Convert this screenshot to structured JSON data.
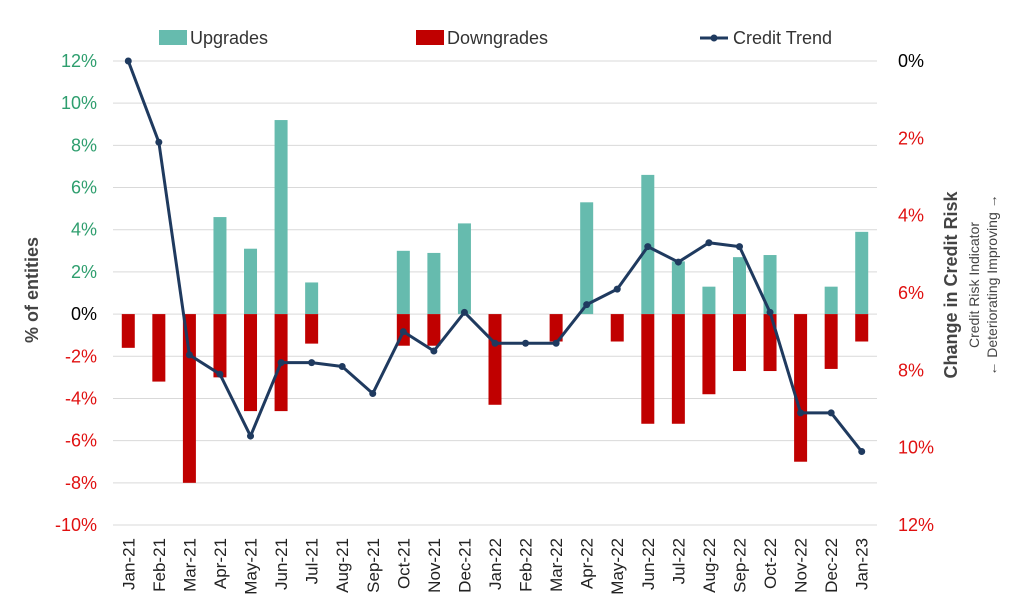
{
  "chart_data": {
    "type": "bar",
    "categories": [
      "Jan-21",
      "Feb-21",
      "Mar-21",
      "Apr-21",
      "May-21",
      "Jun-21",
      "Jul-21",
      "Aug-21",
      "Sep-21",
      "Oct-21",
      "Nov-21",
      "Dec-21",
      "Jan-22",
      "Feb-22",
      "Mar-22",
      "Apr-22",
      "May-22",
      "Jun-22",
      "Jul-22",
      "Aug-22",
      "Sep-22",
      "Oct-22",
      "Nov-22",
      "Dec-22",
      "Jan-23"
    ],
    "series": [
      {
        "name": "Upgrades",
        "type": "bar",
        "axis": "left",
        "color": "#66bbae",
        "values": [
          0,
          0,
          0,
          4.6,
          3.1,
          9.2,
          1.5,
          0,
          0,
          3.0,
          2.9,
          4.3,
          0,
          0,
          0,
          5.3,
          0,
          6.6,
          2.5,
          1.3,
          2.7,
          2.8,
          0,
          1.3,
          3.9
        ]
      },
      {
        "name": "Downgrades",
        "type": "bar",
        "axis": "left",
        "color": "#c00000",
        "values": [
          -1.6,
          -3.2,
          -8.0,
          -3.0,
          -4.6,
          -4.6,
          -1.4,
          0,
          0,
          -1.5,
          -1.5,
          0,
          -4.3,
          0,
          -1.3,
          0,
          -1.3,
          -5.2,
          -5.2,
          -3.8,
          -2.7,
          -2.7,
          -7.0,
          -2.6,
          -1.3
        ]
      },
      {
        "name": "Credit Trend",
        "type": "line",
        "axis": "right",
        "color": "#1f3a5f",
        "values": [
          0.0,
          2.1,
          7.6,
          8.1,
          9.7,
          7.8,
          7.8,
          7.9,
          8.6,
          7.0,
          7.5,
          6.5,
          7.3,
          7.3,
          7.3,
          6.3,
          5.9,
          4.8,
          5.2,
          4.7,
          4.8,
          6.5,
          9.1,
          9.1,
          10.1
        ]
      }
    ],
    "left_axis": {
      "ylabel": "% of entities",
      "ylim": [
        -10,
        12
      ],
      "ticks": [
        {
          "label": "12%",
          "value": 12,
          "color": "#2e9e6e"
        },
        {
          "label": "10%",
          "value": 10,
          "color": "#2e9e6e"
        },
        {
          "label": "8%",
          "value": 8,
          "color": "#2e9e6e"
        },
        {
          "label": "6%",
          "value": 6,
          "color": "#2e9e6e"
        },
        {
          "label": "4%",
          "value": 4,
          "color": "#2e9e6e"
        },
        {
          "label": "2%",
          "value": 2,
          "color": "#2e9e6e"
        },
        {
          "label": "0%",
          "value": 0,
          "color": "#000000"
        },
        {
          "label": "-2%",
          "value": -2,
          "color": "#e01010"
        },
        {
          "label": "-4%",
          "value": -4,
          "color": "#e01010"
        },
        {
          "label": "-6%",
          "value": -6,
          "color": "#e01010"
        },
        {
          "label": "-8%",
          "value": -8,
          "color": "#e01010"
        },
        {
          "label": "-10%",
          "value": -10,
          "color": "#e01010"
        }
      ]
    },
    "right_axis": {
      "title": "Change in Credit Risk",
      "subtitle": "Credit Risk Indicator",
      "direction_label": "← Deteriorating Improving →",
      "ylim": [
        0,
        12
      ],
      "inverted": true,
      "ticks": [
        {
          "label": "0%",
          "value": 0,
          "color": "#000000"
        },
        {
          "label": "2%",
          "value": 2,
          "color": "#e01010"
        },
        {
          "label": "4%",
          "value": 4,
          "color": "#e01010"
        },
        {
          "label": "6%",
          "value": 6,
          "color": "#e01010"
        },
        {
          "label": "8%",
          "value": 8,
          "color": "#e01010"
        },
        {
          "label": "10%",
          "value": 10,
          "color": "#e01010"
        },
        {
          "label": "12%",
          "value": 12,
          "color": "#e01010"
        }
      ]
    },
    "grid": true,
    "legend": {
      "position": "top",
      "items": [
        {
          "label": "Upgrades",
          "kind": "box",
          "color": "#66bbae"
        },
        {
          "label": "Downgrades",
          "kind": "box",
          "color": "#c00000"
        },
        {
          "label": "Credit Trend",
          "kind": "line",
          "color": "#1f3a5f"
        }
      ]
    }
  }
}
